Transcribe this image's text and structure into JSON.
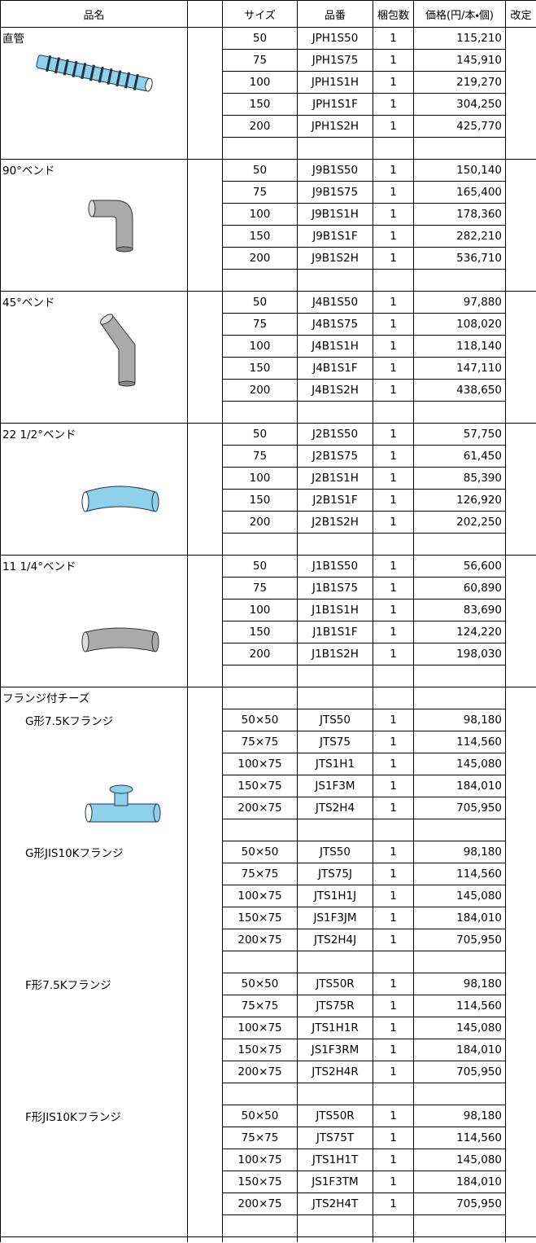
{
  "table": {
    "header": [
      "品名",
      "サイズ",
      "品番",
      "梱包数",
      "価格(円/本・個)",
      "改定"
    ],
    "sections": [
      {
        "label": "直管",
        "rows": [
          [
            "50",
            "JPH1S50",
            "1",
            "115,210"
          ],
          [
            "75",
            "JPH1S75",
            "1",
            "145,910"
          ],
          [
            "100",
            "JPH1S1H",
            "1",
            "219,270"
          ],
          [
            "150",
            "JPH1S1F",
            "1",
            "304,250"
          ],
          [
            "200",
            "JPH1S2H",
            "1",
            "425,770"
          ]
        ]
      },
      {
        "label": "90°ベンド",
        "rows": [
          [
            "50",
            "J9B1S50",
            "1",
            "150,140"
          ],
          [
            "75",
            "J9B1S75",
            "1",
            "165,400"
          ],
          [
            "100",
            "J9B1S1H",
            "1",
            "178,360"
          ],
          [
            "150",
            "J9B1S1F",
            "1",
            "282,210"
          ],
          [
            "200",
            "J9B1S2H",
            "1",
            "536,710"
          ]
        ]
      },
      {
        "label": "45°ベンド",
        "rows": [
          [
            "50",
            "J4B1S50",
            "1",
            "97,880"
          ],
          [
            "75",
            "J4B1S75",
            "1",
            "108,020"
          ],
          [
            "100",
            "J4B1S1H",
            "1",
            "118,140"
          ],
          [
            "150",
            "J4B1S1F",
            "1",
            "147,110"
          ],
          [
            "200",
            "J4B1S2H",
            "1",
            "438,650"
          ]
        ]
      },
      {
        "label": "22 1/2°ベンド",
        "rows": [
          [
            "50",
            "J2B1S50",
            "1",
            "57,750"
          ],
          [
            "75",
            "J2B1S75",
            "1",
            "61,450"
          ],
          [
            "100",
            "J2B1S1H",
            "1",
            "85,390"
          ],
          [
            "150",
            "J2B1S1F",
            "1",
            "126,920"
          ],
          [
            "200",
            "J2B1S2H",
            "1",
            "202,250"
          ]
        ]
      },
      {
        "label": "11 1/4°ベンド",
        "rows": [
          [
            "50",
            "J1B1S50",
            "1",
            "56,600"
          ],
          [
            "75",
            "J1B1S75",
            "1",
            "60,890"
          ],
          [
            "100",
            "J1B1S1H",
            "1",
            "83,690"
          ],
          [
            "150",
            "J1B1S1F",
            "1",
            "124,220"
          ],
          [
            "200",
            "J1B1S2H",
            "1",
            "198,030"
          ]
        ]
      }
    ],
    "flange": {
      "label": "フランジ付チーズ",
      "groups": [
        {
          "label": "G形7.5Kフランジ",
          "rows": [
            [
              "50×50",
              "JTS50",
              "1",
              "98,180"
            ],
            [
              "75×75",
              "JTS75",
              "1",
              "114,560"
            ],
            [
              "100×75",
              "JTS1H1",
              "1",
              "145,080"
            ],
            [
              "150×75",
              "JS1F3M",
              "1",
              "184,010"
            ],
            [
              "200×75",
              "JTS2H4",
              "1",
              "705,950"
            ]
          ]
        },
        {
          "label": "G形JIS10Kフランジ",
          "rows": [
            [
              "50×50",
              "JTS50",
              "1",
              "98,180"
            ],
            [
              "75×75",
              "JTS75J",
              "1",
              "114,560"
            ],
            [
              "100×75",
              "JTS1H1J",
              "1",
              "145,080"
            ],
            [
              "150×75",
              "JS1F3JM",
              "1",
              "184,010"
            ],
            [
              "200×75",
              "JTS2H4J",
              "1",
              "705,950"
            ]
          ]
        },
        {
          "label": "F形7.5Kフランジ",
          "rows": [
            [
              "50×50",
              "JTS50R",
              "1",
              "98,180"
            ],
            [
              "75×75",
              "JTS75R",
              "1",
              "114,560"
            ],
            [
              "100×75",
              "JTS1H1R",
              "1",
              "145,080"
            ],
            [
              "150×75",
              "JS1F3RM",
              "1",
              "184,010"
            ],
            [
              "200×75",
              "JTS2H4R",
              "1",
              "705,950"
            ]
          ]
        },
        {
          "label": "F形JIS10Kフランジ",
          "rows": [
            [
              "50×50",
              "JTS50R",
              "1",
              "98,180"
            ],
            [
              "75×75",
              "JTS75T",
              "1",
              "114,560"
            ],
            [
              "100×75",
              "JTS1H1T",
              "1",
              "145,080"
            ],
            [
              "150×75",
              "JS1F3TM",
              "1",
              "184,010"
            ],
            [
              "200×75",
              "JTS2H4T",
              "1",
              "705,950"
            ]
          ]
        }
      ]
    }
  }
}
